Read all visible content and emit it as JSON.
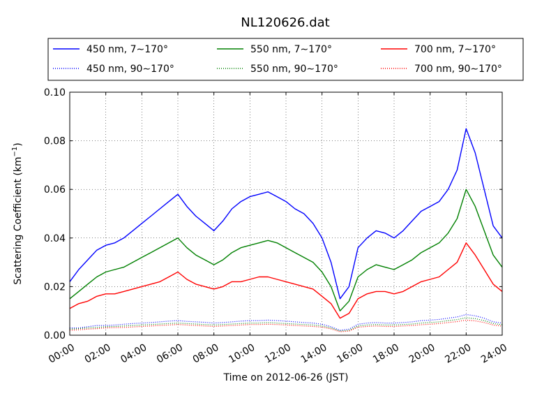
{
  "chart_data": {
    "type": "line",
    "title": "NL120626.dat",
    "xlabel": "Time on 2012-06-26 (JST)",
    "ylabel_main": "Scattering Coefficient (km",
    "ylabel_sup": "−1",
    "ylabel_close": ")",
    "xlim": [
      "00:00",
      "24:00"
    ],
    "ylim": [
      0,
      0.1
    ],
    "grid": true,
    "legend_position": "top",
    "xtick_labels": [
      "00:00",
      "02:00",
      "04:00",
      "06:00",
      "08:00",
      "10:00",
      "12:00",
      "14:00",
      "16:00",
      "18:00",
      "20:00",
      "22:00",
      "24:00"
    ],
    "ytick_labels": [
      "0.00",
      "0.02",
      "0.04",
      "0.06",
      "0.08",
      "0.10"
    ],
    "x_hours": [
      0,
      0.5,
      1,
      1.5,
      2,
      2.5,
      3,
      3.5,
      4,
      4.5,
      5,
      5.5,
      6,
      6.5,
      7,
      7.5,
      8,
      8.5,
      9,
      9.5,
      10,
      10.5,
      11,
      11.5,
      12,
      12.5,
      13,
      13.5,
      14,
      14.5,
      15,
      15.5,
      16,
      16.5,
      17,
      17.5,
      18,
      18.5,
      19,
      19.5,
      20,
      20.5,
      21,
      21.5,
      22,
      22.5,
      23,
      23.5,
      24
    ],
    "series": [
      {
        "name": "450 nm, 7∼170°",
        "color": "#0000ff",
        "style": "solid",
        "values": [
          0.022,
          0.027,
          0.031,
          0.035,
          0.037,
          0.038,
          0.04,
          0.043,
          0.046,
          0.049,
          0.052,
          0.055,
          0.058,
          0.053,
          0.049,
          0.046,
          0.043,
          0.047,
          0.052,
          0.055,
          0.057,
          0.058,
          0.059,
          0.057,
          0.055,
          0.052,
          0.05,
          0.046,
          0.04,
          0.03,
          0.015,
          0.02,
          0.036,
          0.04,
          0.043,
          0.042,
          0.04,
          0.043,
          0.047,
          0.051,
          0.053,
          0.055,
          0.06,
          0.068,
          0.085,
          0.075,
          0.06,
          0.045,
          0.04
        ]
      },
      {
        "name": "550 nm, 7∼170°",
        "color": "#008000",
        "style": "solid",
        "values": [
          0.015,
          0.018,
          0.021,
          0.024,
          0.026,
          0.027,
          0.028,
          0.03,
          0.032,
          0.034,
          0.036,
          0.038,
          0.04,
          0.036,
          0.033,
          0.031,
          0.029,
          0.031,
          0.034,
          0.036,
          0.037,
          0.038,
          0.039,
          0.038,
          0.036,
          0.034,
          0.032,
          0.03,
          0.026,
          0.02,
          0.01,
          0.014,
          0.024,
          0.027,
          0.029,
          0.028,
          0.027,
          0.029,
          0.031,
          0.034,
          0.036,
          0.038,
          0.042,
          0.048,
          0.06,
          0.053,
          0.043,
          0.033,
          0.028
        ]
      },
      {
        "name": "700 nm, 7∼170°",
        "color": "#ff0000",
        "style": "solid",
        "values": [
          0.011,
          0.013,
          0.014,
          0.016,
          0.017,
          0.017,
          0.018,
          0.019,
          0.02,
          0.021,
          0.022,
          0.024,
          0.026,
          0.023,
          0.021,
          0.02,
          0.019,
          0.02,
          0.022,
          0.022,
          0.023,
          0.024,
          0.024,
          0.023,
          0.022,
          0.021,
          0.02,
          0.019,
          0.016,
          0.013,
          0.007,
          0.009,
          0.015,
          0.017,
          0.018,
          0.018,
          0.017,
          0.018,
          0.02,
          0.022,
          0.023,
          0.024,
          0.027,
          0.03,
          0.038,
          0.033,
          0.027,
          0.021,
          0.018
        ]
      },
      {
        "name": "450 nm, 90∼170°",
        "color": "#0000ff",
        "style": "dotted",
        "values": [
          0.003,
          0.003,
          0.0035,
          0.004,
          0.004,
          0.0042,
          0.0045,
          0.0048,
          0.005,
          0.0052,
          0.0055,
          0.0058,
          0.006,
          0.0057,
          0.0055,
          0.0053,
          0.005,
          0.0052,
          0.0055,
          0.0058,
          0.006,
          0.006,
          0.0062,
          0.006,
          0.0058,
          0.0055,
          0.0052,
          0.005,
          0.0045,
          0.0035,
          0.002,
          0.0025,
          0.0045,
          0.005,
          0.0052,
          0.005,
          0.005,
          0.0052,
          0.0055,
          0.006,
          0.0062,
          0.0065,
          0.007,
          0.0075,
          0.0085,
          0.008,
          0.007,
          0.0055,
          0.005
        ]
      },
      {
        "name": "550 nm, 90∼170°",
        "color": "#008000",
        "style": "dotted",
        "values": [
          0.0025,
          0.0027,
          0.003,
          0.0032,
          0.0035,
          0.0036,
          0.0038,
          0.004,
          0.0042,
          0.0044,
          0.0046,
          0.0048,
          0.005,
          0.0048,
          0.0046,
          0.0044,
          0.0042,
          0.0044,
          0.0046,
          0.0048,
          0.005,
          0.005,
          0.0052,
          0.005,
          0.0048,
          0.0046,
          0.0044,
          0.0042,
          0.0038,
          0.003,
          0.0017,
          0.002,
          0.0038,
          0.0042,
          0.0044,
          0.0042,
          0.0042,
          0.0044,
          0.0046,
          0.005,
          0.0052,
          0.0055,
          0.006,
          0.0064,
          0.0072,
          0.0068,
          0.006,
          0.0048,
          0.0043
        ]
      },
      {
        "name": "700 nm, 90∼170°",
        "color": "#ff0000",
        "style": "dotted",
        "values": [
          0.002,
          0.0022,
          0.0025,
          0.0027,
          0.003,
          0.0031,
          0.0032,
          0.0034,
          0.0036,
          0.0038,
          0.004,
          0.0042,
          0.0044,
          0.0042,
          0.004,
          0.0038,
          0.0036,
          0.0038,
          0.004,
          0.0042,
          0.0044,
          0.0044,
          0.0045,
          0.0044,
          0.0042,
          0.004,
          0.0038,
          0.0036,
          0.0033,
          0.0026,
          0.0014,
          0.0017,
          0.0033,
          0.0036,
          0.0038,
          0.0036,
          0.0036,
          0.0038,
          0.004,
          0.0043,
          0.0045,
          0.0048,
          0.0052,
          0.0056,
          0.0062,
          0.0059,
          0.0052,
          0.0042,
          0.0037
        ]
      }
    ]
  }
}
